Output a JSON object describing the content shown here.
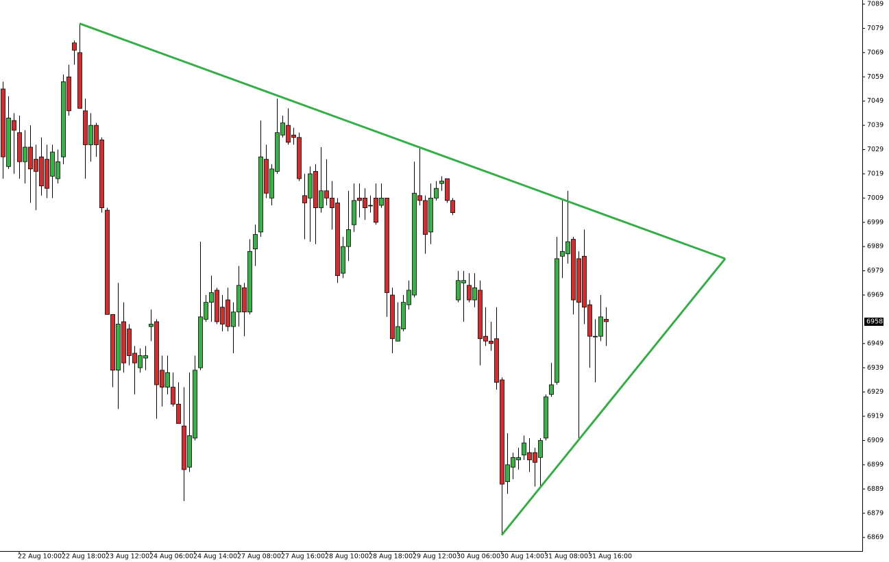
{
  "chart_data": {
    "type": "candlestick",
    "categories": [
      null,
      null,
      null,
      "22 Aug 10:00",
      null,
      null,
      null,
      null,
      null,
      null,
      null,
      "22 Aug 18:00",
      null,
      null,
      null,
      null,
      null,
      null,
      null,
      "23 Aug 12:00",
      null,
      null,
      null,
      null,
      null,
      null,
      null,
      "24 Aug 06:00",
      null,
      null,
      null,
      null,
      null,
      null,
      null,
      "24 Aug 14:00",
      null,
      null,
      null,
      null,
      null,
      null,
      null,
      "27 Aug 08:00",
      null,
      null,
      null,
      null,
      null,
      null,
      null,
      "27 Aug 16:00",
      null,
      null,
      null,
      null,
      null,
      null,
      null,
      "28 Aug 10:00",
      null,
      null,
      null,
      null,
      null,
      null,
      null,
      "28 Aug 18:00",
      null,
      null,
      null,
      null,
      null,
      null,
      null,
      "29 Aug 12:00",
      null,
      null,
      null,
      null,
      null,
      null,
      null,
      "30 Aug 06:00",
      null,
      null,
      null,
      null,
      null,
      null,
      null,
      "30 Aug 14:00",
      null,
      null,
      null,
      null,
      null,
      null,
      null,
      "31 Aug 08:00",
      null,
      null,
      null,
      null,
      null,
      null,
      null,
      "31 Aug 16:00",
      null,
      null,
      null
    ],
    "open": [
      7054,
      7022,
      7041,
      7036,
      7024,
      7030,
      7025,
      7026,
      7025,
      7018,
      7017,
      7026,
      7059,
      7073,
      7069,
      7045,
      7031,
      7039,
      7033,
      7004,
      6961,
      6938,
      6958,
      6955,
      6945,
      6939,
      6943,
      6956,
      6958,
      6938,
      6931,
      6931,
      6924,
      6915,
      6898,
      6910,
      6939,
      6959,
      6966,
      6971,
      6964,
      6967,
      6956,
      6962,
      6972,
      6962,
      6988,
      6995,
      7025,
      7009,
      7020,
      7035,
      7039,
      7035,
      7034,
      7010,
      7009,
      7020,
      7005,
      7012,
      7009,
      7007,
      6978,
      6989,
      6998,
      7009,
      7009,
      7006,
      7009,
      7006,
      7009,
      6969,
      6950,
      6955,
      6965,
      6969,
      7010,
      7008,
      6995,
      7009,
      7015,
      7017,
      7008,
      6967,
      6974,
      6973,
      6967,
      6971,
      6952,
      6950,
      6951,
      6934,
      6892,
      6898,
      6901,
      6903,
      6904,
      6904,
      6902,
      6910,
      6928,
      6933,
      6985,
      6986,
      6992,
      6984,
      6985,
      6965,
      6952,
      6952,
      6959
    ],
    "high": [
      7057,
      7051,
      7044,
      7043,
      7037,
      7039,
      7031,
      7034,
      7031,
      7031,
      7029,
      7060,
      7064,
      7074,
      7081,
      7050,
      7044,
      7040,
      7034,
      7005,
      6961,
      6974,
      6966,
      6957,
      6948,
      6947,
      6948,
      6963,
      6959,
      6944,
      6944,
      6937,
      6933,
      6931,
      6937,
      6944,
      6991,
      6969,
      6977,
      6972,
      6969,
      6972,
      6966,
      6981,
      6974,
      6992,
      6998,
      7041,
      7031,
      7023,
      7050,
      7043,
      7046,
      7038,
      7036,
      7019,
      7022,
      7023,
      7030,
      7025,
      7016,
      7009,
      6993,
      7012,
      7015,
      7015,
      7013,
      7010,
      7015,
      7015,
      7009,
      6972,
      6966,
      6969,
      6975,
      7024,
      7030,
      7010,
      7015,
      7016,
      7018,
      7017,
      7009,
      6979,
      6979,
      6978,
      6978,
      6975,
      6964,
      6958,
      6964,
      6935,
      6912,
      6904,
      6906,
      6911,
      6910,
      6906,
      6910,
      6928,
      6941,
      6993,
      7008,
      7012,
      6993,
      6987,
      6996,
      6967,
      6959,
      6969,
      6964
    ],
    "low": [
      7017,
      7021,
      7019,
      7017,
      7015,
      7007,
      7004,
      7010,
      7009,
      7009,
      7015,
      7023,
      7043,
      7064,
      7046,
      7017,
      7024,
      7026,
      7003,
      6961,
      6931,
      6922,
      6937,
      6940,
      6928,
      6937,
      6938,
      6950,
      6918,
      6923,
      6928,
      6923,
      6916,
      6884,
      6896,
      6909,
      6938,
      6958,
      6958,
      6957,
      6954,
      6954,
      6945,
      6956,
      6952,
      6961,
      6981,
      6993,
      7009,
      7006,
      7019,
      7034,
      7031,
      7031,
      7016,
      6992,
      6991,
      6990,
      7003,
      7006,
      6996,
      6974,
      6976,
      6983,
      6995,
      7001,
      7000,
      7003,
      6998,
      7005,
      6960,
      6945,
      6950,
      6954,
      6963,
      6968,
      7006,
      6986,
      6990,
      7008,
      7012,
      7007,
      7002,
      6966,
      6958,
      6966,
      6964,
      6940,
      6948,
      6946,
      6930,
      6870,
      6887,
      6893,
      6897,
      6901,
      6896,
      6890,
      6890,
      6909,
      6927,
      6932,
      6976,
      6982,
      6961,
      6910,
      6957,
      6939,
      6933,
      6950,
      6948
    ],
    "close": [
      7026,
      7042,
      7037,
      7024,
      7030,
      7021,
      7020,
      7014,
      7013,
      7028,
      7024,
      7057,
      7045,
      7070,
      7046,
      7031,
      7039,
      7031,
      7005,
      6961,
      6938,
      6957,
      6941,
      6944,
      6941,
      6944,
      6944,
      6957,
      6932,
      6931,
      6937,
      6924,
      6916,
      6897,
      6911,
      6938,
      6960,
      6966,
      6970,
      6958,
      6957,
      6956,
      6962,
      6973,
      6962,
      6987,
      6994,
      7026,
      7011,
      7021,
      7036,
      7040,
      7032,
      7034,
      7017,
      7007,
      7019,
      7005,
      7012,
      7009,
      7005,
      6977,
      6989,
      6996,
      7008,
      7008,
      7005,
      7006,
      6999,
      7009,
      6970,
      6951,
      6956,
      6966,
      6971,
      7011,
      7008,
      6994,
      7009,
      7013,
      7016,
      7008,
      7003,
      6975,
      6975,
      6967,
      6972,
      6951,
      6950,
      6949,
      6933,
      6891,
      6899,
      6902,
      6902,
      6908,
      6901,
      6900,
      6909,
      6927,
      6932,
      6984,
      6987,
      6991,
      6967,
      6966,
      6964,
      6952,
      6952,
      6960,
      6958
    ],
    "up_color": "#3fae49",
    "down_color": "#cf2f2f",
    "ylim": [
      6863.4,
      7090.7
    ],
    "yticks": [
      7089,
      7079,
      7069,
      7059,
      7049,
      7039,
      7029,
      7019,
      7009,
      6999,
      6989,
      6979,
      6969,
      6949,
      6939,
      6929,
      6919,
      6909,
      6899,
      6889,
      6879,
      6869
    ],
    "last_price": 6958,
    "trendlines": [
      {
        "color": "#35ad47",
        "x": [
          14,
          131.75
        ],
        "y": [
          7081,
          6984
        ]
      },
      {
        "color": "#35ad47",
        "x": [
          91,
          131.75
        ],
        "y": [
          6870,
          6984
        ]
      }
    ]
  }
}
